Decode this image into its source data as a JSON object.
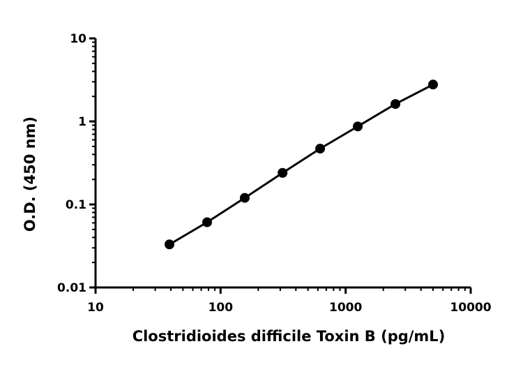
{
  "chart_data": {
    "type": "scatter",
    "title": "",
    "xlabel": "Clostridioides difficile Toxin B (pg/mL)",
    "ylabel": "O.D. (450 nm)",
    "xscale": "log",
    "yscale": "log",
    "xlim": [
      10,
      10000
    ],
    "ylim": [
      0.01,
      10
    ],
    "x_ticks": [
      10,
      100,
      1000,
      10000
    ],
    "x_tick_labels": [
      "10",
      "100",
      "1000",
      "10000"
    ],
    "y_ticks": [
      0.01,
      0.1,
      1,
      10
    ],
    "y_tick_labels": [
      "0.01",
      "0.1",
      "1",
      "10"
    ],
    "grid": false,
    "legend": "none",
    "series": [
      {
        "x": [
          39,
          78,
          156,
          313,
          625,
          1250,
          2500,
          5000
        ],
        "y": [
          0.033,
          0.061,
          0.12,
          0.24,
          0.47,
          0.87,
          1.62,
          2.78
        ],
        "color": "#000000",
        "marker": "circle",
        "fit_line": true
      }
    ]
  }
}
